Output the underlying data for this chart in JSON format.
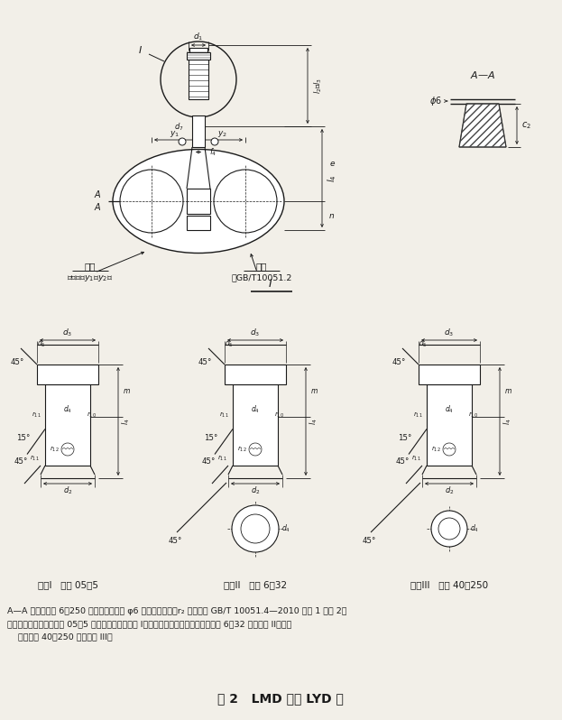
{
  "bg_color": "#f2efe8",
  "lc": "#1a1a1a",
  "tc": "#1a1a1a",
  "title": "图 2   LMD 型和 LYD 型",
  "label_type1": "型式I   钩号 05～5",
  "label_type2": "型式II   钩号 6～32",
  "label_type3": "型式III   钩号 40～250",
  "note1": "A—A 剖面中钩号 6～250 的双钩，应压人 φ6 不锈钢圆柱销，r₂ 的尺寸见 GB/T 10051.4—2010 中表 1 和表 2。",
  "note2": "注：轻小型起重设备用的 05～5 号双钩，柄端为型式 I；起重机械和轻小型起重设备用的 6～32 号为型式 II；起重",
  "note3": "    机械用的 40～250 号为型式 III。",
  "mark1_label": "标志",
  "mark1_sub": "测量长度y₁及y₂值",
  "mark2_label": "标志",
  "mark2_sub": "按GB/T10051.2",
  "aa_label": "A—A",
  "div_label": "I"
}
